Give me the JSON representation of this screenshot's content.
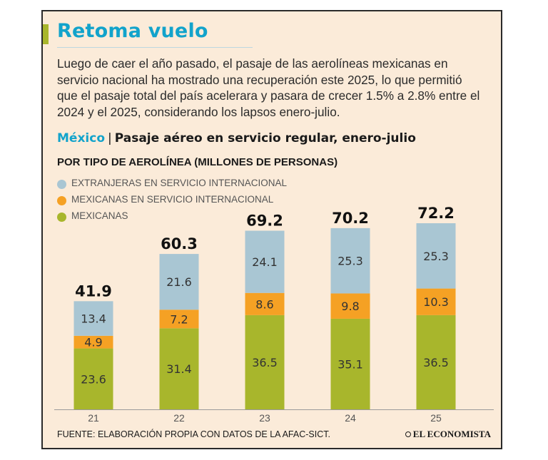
{
  "header": {
    "title": "Retoma vuelo",
    "lead": "Luego de caer el año pasado, el pasaje de las aerolíneas mexicanas en servicio nacional ha mostrado una recuperación este 2025, lo que permitió que el pasaje total del país acelerara y pasara de crecer 1.5% a 2.8% entre el 2024 y el 2025, considerando los lapsos enero-julio."
  },
  "subhead": {
    "region": "México",
    "separator": "|",
    "text": "Pasaje aéreo en servicio regular, enero-julio"
  },
  "unit_label": "POR TIPO DE AEROLÍNEA (MILLONES DE PERSONAS)",
  "footer": {
    "source": "FUENTE: ELABORACIÓN PROPIA CON DATOS DE LA AFAC-SICT.",
    "brand": "EL ECONOMISTA"
  },
  "chart_data": {
    "type": "bar",
    "stacked": true,
    "title": "Pasaje aéreo en servicio regular, enero-julio",
    "ylabel": "Millones de personas",
    "categories": [
      "21",
      "22",
      "23",
      "24",
      "25"
    ],
    "totals": [
      "41.9",
      "60.3",
      "69.2",
      "70.2",
      "72.2"
    ],
    "series": [
      {
        "name": "MEXICANAS",
        "color": "#a8b62c",
        "values": [
          23.6,
          31.4,
          36.5,
          35.1,
          36.5
        ]
      },
      {
        "name": "MEXICANAS EN SERVICIO INTERNACIONAL",
        "color": "#f5a124",
        "values": [
          4.9,
          7.2,
          8.6,
          9.8,
          10.3
        ]
      },
      {
        "name": "EXTRANJERAS EN SERVICIO INTERNACIONAL",
        "color": "#a9c6d3",
        "values": [
          13.4,
          21.6,
          24.1,
          25.3,
          25.3
        ]
      }
    ],
    "legend_order": [
      2,
      1,
      0
    ],
    "ylim": [
      0,
      80
    ]
  }
}
